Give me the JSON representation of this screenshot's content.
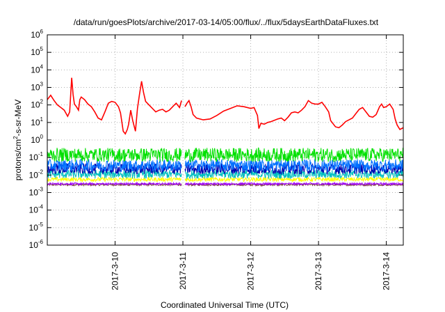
{
  "chart_data": {
    "type": "line",
    "title": "/data/run/goesPlots/archive/2017-03-14/05:00/flux/../flux/5daysEarthDataFluxes.txt",
    "xlabel": "Coordinated Universal Time (UTC)",
    "ylabel": {
      "base": "protons/cm",
      "sup": "2",
      "rest": "-s-sr-MeV"
    },
    "yscale": "log",
    "ylim_exp": [
      -6,
      6
    ],
    "xlim_days": [
      9.0,
      14.25
    ],
    "grid": true,
    "y_ticks": [
      {
        "exp": -6,
        "base": "10",
        "sup": "-6"
      },
      {
        "exp": -5,
        "base": "10",
        "sup": "-5"
      },
      {
        "exp": -4,
        "base": "10",
        "sup": "-4"
      },
      {
        "exp": -3,
        "base": "10",
        "sup": "-3"
      },
      {
        "exp": -2,
        "base": "10",
        "sup": "-2"
      },
      {
        "exp": -1,
        "base": "10",
        "sup": "-1"
      },
      {
        "exp": 0,
        "base": "10",
        "sup": "0"
      },
      {
        "exp": 1,
        "base": "10",
        "sup": "1"
      },
      {
        "exp": 2,
        "base": "10",
        "sup": "2"
      },
      {
        "exp": 3,
        "base": "10",
        "sup": "3"
      },
      {
        "exp": 4,
        "base": "10",
        "sup": "4"
      },
      {
        "exp": 5,
        "base": "10",
        "sup": "5"
      },
      {
        "exp": 6,
        "base": "10",
        "sup": "6"
      }
    ],
    "x_ticks": [
      {
        "day": 10,
        "label": "2017-3-10"
      },
      {
        "day": 11,
        "label": "2017-3-11"
      },
      {
        "day": 12,
        "label": "2017-3-12"
      },
      {
        "day": 13,
        "label": "2017-3-13"
      },
      {
        "day": 14,
        "label": "2017-3-14"
      }
    ],
    "gap_days": [
      10.98,
      11.03
    ],
    "series": [
      {
        "color": "#ff0000",
        "noisy": false,
        "points": [
          [
            9.0,
            2.3
          ],
          [
            9.05,
            2.55
          ],
          [
            9.1,
            2.25
          ],
          [
            9.15,
            2.0
          ],
          [
            9.2,
            1.85
          ],
          [
            9.25,
            1.7
          ],
          [
            9.3,
            1.35
          ],
          [
            9.33,
            1.6
          ],
          [
            9.36,
            3.55
          ],
          [
            9.38,
            2.6
          ],
          [
            9.4,
            2.05
          ],
          [
            9.43,
            1.9
          ],
          [
            9.46,
            1.7
          ],
          [
            9.48,
            2.3
          ],
          [
            9.5,
            2.45
          ],
          [
            9.55,
            2.3
          ],
          [
            9.6,
            2.05
          ],
          [
            9.65,
            1.9
          ],
          [
            9.7,
            1.6
          ],
          [
            9.75,
            1.25
          ],
          [
            9.8,
            1.15
          ],
          [
            9.85,
            1.6
          ],
          [
            9.9,
            2.1
          ],
          [
            9.95,
            2.2
          ],
          [
            10.0,
            2.15
          ],
          [
            10.05,
            1.9
          ],
          [
            10.08,
            1.55
          ],
          [
            10.12,
            0.5
          ],
          [
            10.15,
            0.35
          ],
          [
            10.18,
            0.6
          ],
          [
            10.2,
            0.9
          ],
          [
            10.23,
            1.7
          ],
          [
            10.26,
            1.1
          ],
          [
            10.3,
            0.5
          ],
          [
            10.33,
            1.8
          ],
          [
            10.36,
            2.6
          ],
          [
            10.39,
            3.35
          ],
          [
            10.42,
            2.7
          ],
          [
            10.45,
            2.2
          ],
          [
            10.5,
            2.0
          ],
          [
            10.55,
            1.8
          ],
          [
            10.6,
            1.6
          ],
          [
            10.65,
            1.7
          ],
          [
            10.7,
            1.75
          ],
          [
            10.75,
            1.6
          ],
          [
            10.8,
            1.7
          ],
          [
            10.85,
            1.9
          ],
          [
            10.9,
            2.1
          ],
          [
            10.95,
            1.85
          ],
          [
            10.98,
            2.25
          ],
          [
            11.03,
            1.9
          ],
          [
            11.06,
            2.1
          ],
          [
            11.09,
            2.25
          ],
          [
            11.12,
            1.9
          ],
          [
            11.15,
            1.45
          ],
          [
            11.2,
            1.25
          ],
          [
            11.3,
            1.15
          ],
          [
            11.4,
            1.2
          ],
          [
            11.5,
            1.4
          ],
          [
            11.6,
            1.65
          ],
          [
            11.7,
            1.8
          ],
          [
            11.8,
            1.95
          ],
          [
            11.9,
            1.9
          ],
          [
            12.0,
            1.8
          ],
          [
            12.05,
            1.85
          ],
          [
            12.1,
            1.4
          ],
          [
            12.12,
            0.65
          ],
          [
            12.15,
            0.95
          ],
          [
            12.2,
            0.9
          ],
          [
            12.25,
            1.0
          ],
          [
            12.3,
            1.05
          ],
          [
            12.4,
            1.2
          ],
          [
            12.45,
            1.25
          ],
          [
            12.5,
            1.1
          ],
          [
            12.55,
            1.3
          ],
          [
            12.6,
            1.55
          ],
          [
            12.65,
            1.6
          ],
          [
            12.7,
            1.55
          ],
          [
            12.75,
            1.7
          ],
          [
            12.8,
            1.9
          ],
          [
            12.85,
            2.25
          ],
          [
            12.9,
            2.1
          ],
          [
            12.95,
            2.05
          ],
          [
            13.0,
            2.05
          ],
          [
            13.05,
            2.15
          ],
          [
            13.1,
            1.9
          ],
          [
            13.15,
            1.6
          ],
          [
            13.18,
            1.1
          ],
          [
            13.25,
            0.75
          ],
          [
            13.3,
            0.7
          ],
          [
            13.35,
            0.85
          ],
          [
            13.4,
            1.05
          ],
          [
            13.5,
            1.25
          ],
          [
            13.55,
            1.5
          ],
          [
            13.6,
            1.75
          ],
          [
            13.65,
            1.85
          ],
          [
            13.7,
            1.6
          ],
          [
            13.75,
            1.35
          ],
          [
            13.8,
            1.3
          ],
          [
            13.85,
            1.45
          ],
          [
            13.9,
            1.9
          ],
          [
            13.93,
            2.05
          ],
          [
            13.96,
            1.85
          ],
          [
            14.0,
            1.9
          ],
          [
            14.05,
            2.05
          ],
          [
            14.1,
            1.75
          ],
          [
            14.13,
            1.2
          ],
          [
            14.16,
            0.85
          ],
          [
            14.2,
            0.6
          ],
          [
            14.25,
            0.7
          ]
        ]
      },
      {
        "color": "#00e000",
        "noisy": true,
        "base": -0.85,
        "amp": 0.4
      },
      {
        "color": "#0070ff",
        "noisy": true,
        "base": -1.45,
        "amp": 0.35
      },
      {
        "color": "#0000b0",
        "noisy": true,
        "base": -1.65,
        "amp": 0.3
      },
      {
        "color": "#00c0c0",
        "noisy": true,
        "base": -1.95,
        "amp": 0.25
      },
      {
        "color": "#ffff00",
        "noisy": true,
        "base": -2.25,
        "amp": 0.12
      },
      {
        "color": "#a000ff",
        "noisy": true,
        "base": -2.5,
        "amp": 0.06
      },
      {
        "color": "#804040",
        "noisy": true,
        "base": -2.55,
        "amp": 0.06
      }
    ]
  }
}
